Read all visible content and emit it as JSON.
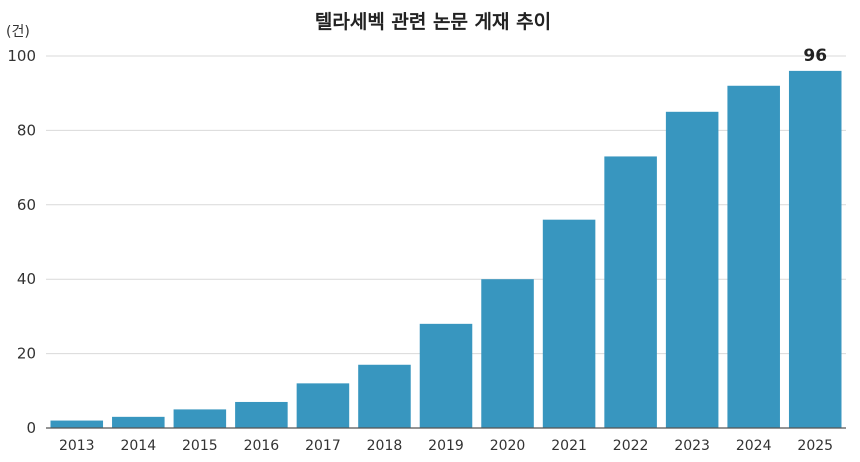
{
  "chart_data": {
    "type": "bar",
    "title": "텔라세벡 관련 논문 게재 추이",
    "unit_label": "(건)",
    "xlabel": "",
    "ylabel": "",
    "categories": [
      "2013",
      "2014",
      "2015",
      "2016",
      "2017",
      "2018",
      "2019",
      "2020",
      "2021",
      "2022",
      "2023",
      "2024",
      "2025"
    ],
    "values": [
      2,
      3,
      5,
      7,
      12,
      17,
      28,
      40,
      56,
      73,
      85,
      92,
      96
    ],
    "ylim": [
      0,
      100
    ],
    "yticks": [
      0,
      20,
      40,
      60,
      80,
      100
    ],
    "grid": true,
    "bar_color": "#3896bf",
    "data_labels": [
      {
        "category": "2025",
        "text": "96"
      }
    ]
  }
}
